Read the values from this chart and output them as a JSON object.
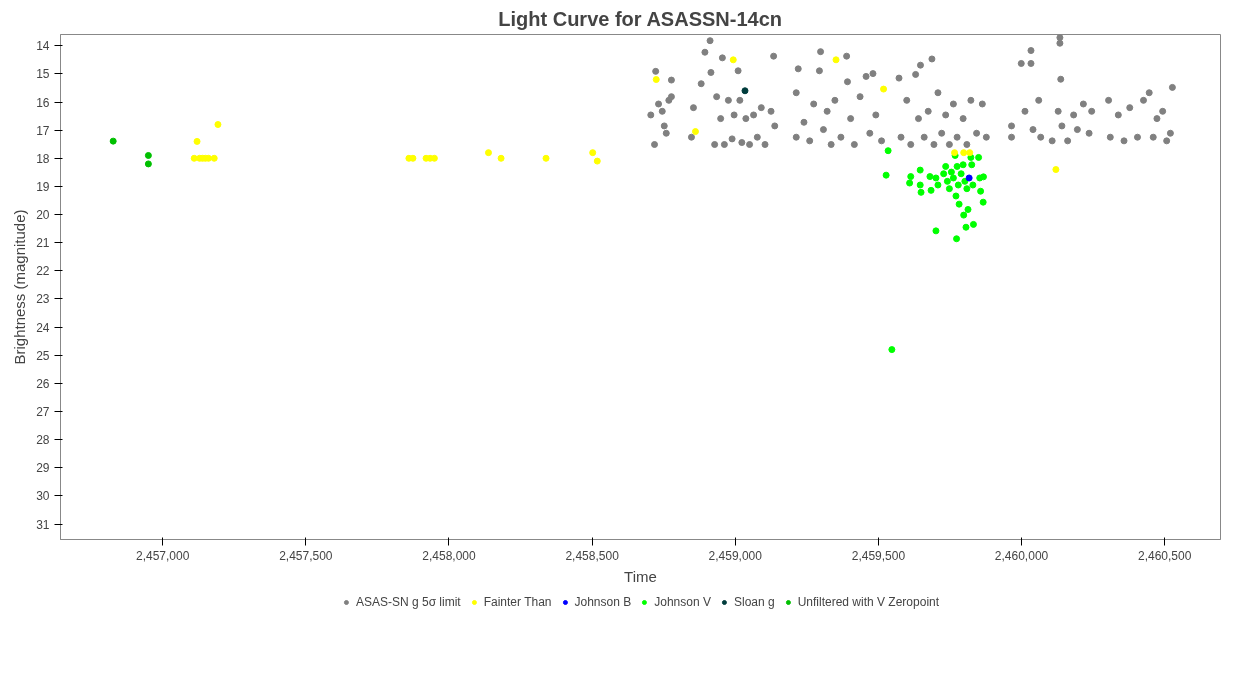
{
  "chart_data": {
    "type": "scatter",
    "title": "Light Curve for ASASSN-14cn",
    "xlabel": "Time",
    "ylabel": "Brightness (magnitude)",
    "xlim": [
      2456643,
      2460695
    ],
    "ylim": [
      31.55,
      13.6
    ],
    "xticks": [
      {
        "value": 2457000,
        "label": "2,457,000"
      },
      {
        "value": 2457500,
        "label": "2,457,500"
      },
      {
        "value": 2458000,
        "label": "2,458,000"
      },
      {
        "value": 2458500,
        "label": "2,458,500"
      },
      {
        "value": 2459000,
        "label": "2,459,000"
      },
      {
        "value": 2459500,
        "label": "2,459,500"
      },
      {
        "value": 2460000,
        "label": "2,460,000"
      },
      {
        "value": 2460500,
        "label": "2,460,500"
      }
    ],
    "yticks": [
      14,
      15,
      16,
      17,
      18,
      19,
      20,
      21,
      22,
      23,
      24,
      25,
      26,
      27,
      28,
      29,
      30,
      31
    ],
    "grid": false,
    "legend": "bottom",
    "marker": "circle",
    "series": [
      {
        "name": "ASAS-SN g 5σ limit",
        "color": "#808080",
        "x": [
          2458722,
          2458705,
          2458718,
          2458732,
          2458745,
          2458752,
          2458759,
          2458768,
          2458777,
          2458777,
          2458847,
          2458854,
          2458881,
          2458894,
          2458912,
          2458915,
          2458928,
          2458935,
          2458949,
          2458955,
          2458962,
          2458976,
          2458989,
          2458996,
          2459010,
          2459016,
          2459023,
          2459037,
          2459050,
          2459064,
          2459077,
          2459091,
          2459104,
          2459125,
          2459134,
          2459138,
          2459213,
          2459220,
          2459213,
          2459240,
          2459260,
          2459274,
          2459294,
          2459298,
          2459308,
          2459321,
          2459335,
          2459348,
          2459369,
          2459389,
          2459392,
          2459403,
          2459416,
          2459436,
          2459457,
          2459470,
          2459481,
          2459491,
          2459511,
          2459572,
          2459579,
          2459599,
          2459613,
          2459630,
          2459640,
          2459647,
          2459660,
          2459674,
          2459687,
          2459694,
          2459708,
          2459721,
          2459735,
          2459748,
          2459762,
          2459775,
          2459796,
          2459809,
          2459823,
          2459843,
          2459863,
          2459877,
          2459965,
          2459965,
          2459999,
          2460012,
          2460033,
          2460033,
          2460040,
          2460060,
          2460067,
          2460107,
          2460128,
          2460134,
          2460134,
          2460137,
          2460141,
          2460161,
          2460182,
          2460195,
          2460216,
          2460236,
          2460245,
          2460304,
          2460310,
          2460338,
          2460358,
          2460378,
          2460405,
          2460426,
          2460446,
          2460460,
          2460473,
          2460493,
          2460507,
          2460527,
          2460520
        ],
        "values": [
          14.91,
          16.46,
          17.51,
          16.07,
          16.33,
          16.85,
          17.11,
          15.94,
          15.22,
          15.81,
          17.25,
          16.2,
          15.35,
          14.23,
          13.82,
          14.95,
          17.51,
          15.81,
          16.59,
          14.43,
          17.51,
          15.94,
          17.31,
          16.46,
          14.89,
          15.94,
          17.44,
          16.59,
          17.51,
          16.46,
          17.25,
          16.2,
          17.51,
          16.33,
          14.37,
          16.85,
          15.67,
          14.82,
          17.25,
          16.72,
          17.38,
          16.07,
          14.89,
          14.21,
          16.98,
          16.33,
          17.51,
          15.94,
          17.25,
          14.37,
          15.28,
          16.59,
          17.51,
          15.81,
          15.09,
          17.11,
          14.99,
          16.46,
          17.38,
          15.15,
          17.25,
          15.94,
          17.51,
          15.02,
          16.59,
          14.69,
          17.25,
          16.33,
          14.47,
          17.51,
          15.67,
          17.11,
          16.46,
          17.51,
          16.07,
          17.25,
          16.59,
          17.51,
          15.94,
          17.11,
          16.07,
          17.25,
          16.85,
          17.25,
          14.63,
          16.33,
          14.17,
          14.63,
          16.98,
          15.94,
          17.25,
          17.38,
          16.33,
          13.71,
          13.91,
          15.19,
          16.85,
          17.38,
          16.46,
          16.98,
          16.07,
          17.11,
          16.33,
          15.94,
          17.25,
          16.46,
          17.38,
          16.2,
          17.25,
          15.94,
          15.67,
          17.25,
          16.59,
          16.33,
          17.38,
          15.48,
          17.11
        ]
      },
      {
        "name": "Fainter Than",
        "color": "#ffff00",
        "x": [
          2457110,
          2457120,
          2457129,
          2457139,
          2457149,
          2457160,
          2457180,
          2457193,
          2457860,
          2457874,
          2457920,
          2457934,
          2457949,
          2458138,
          2458182,
          2458339,
          2458502,
          2458518,
          2458724,
          2458861,
          2458993,
          2459352,
          2459518,
          2459766,
          2459798,
          2459819,
          2460120
        ],
        "values": [
          18.0,
          17.4,
          18.0,
          18.0,
          18.0,
          18.0,
          18.0,
          16.8,
          18.0,
          18.0,
          18.0,
          18.0,
          18.0,
          17.8,
          18.0,
          18.0,
          17.8,
          18.1,
          15.2,
          17.05,
          14.5,
          14.5,
          15.54,
          17.8,
          17.8,
          17.8,
          18.4
        ]
      },
      {
        "name": "Johnson B",
        "color": "#0000ff",
        "x": [
          2459817
        ],
        "values": [
          18.7
        ]
      },
      {
        "name": "Johnson V",
        "color": "#00ff00",
        "x": [
          2459534,
          2459527,
          2459613,
          2459609,
          2459646,
          2459646,
          2459649,
          2459680,
          2459684,
          2459701,
          2459708,
          2459728,
          2459735,
          2459741,
          2459748,
          2459755,
          2459762,
          2459768,
          2459771,
          2459775,
          2459779,
          2459782,
          2459789,
          2459796,
          2459798,
          2459802,
          2459806,
          2459809,
          2459813,
          2459823,
          2459826,
          2459830,
          2459832,
          2459850,
          2459854,
          2459857,
          2459866,
          2459867,
          2459701,
          2459773,
          2459547
        ],
        "values": [
          17.73,
          18.6,
          18.65,
          18.88,
          18.42,
          18.95,
          19.21,
          18.65,
          19.14,
          18.7,
          18.95,
          18.55,
          18.29,
          18.82,
          19.08,
          18.49,
          18.7,
          17.9,
          19.34,
          18.29,
          18.95,
          19.63,
          18.55,
          18.23,
          20.02,
          18.82,
          20.45,
          19.08,
          19.82,
          17.97,
          18.23,
          18.95,
          20.35,
          17.97,
          18.7,
          19.17,
          19.56,
          18.66,
          20.58,
          20.86,
          24.8
        ]
      },
      {
        "name": "Sloan g",
        "color": "#003c3c",
        "x": [
          2459034
        ],
        "values": [
          15.6
        ]
      },
      {
        "name": "Unfiltered with V Zeropoint",
        "color": "#00c000",
        "x": [
          2456827,
          2456950,
          2456950
        ],
        "values": [
          17.39,
          17.9,
          18.2
        ]
      }
    ]
  }
}
